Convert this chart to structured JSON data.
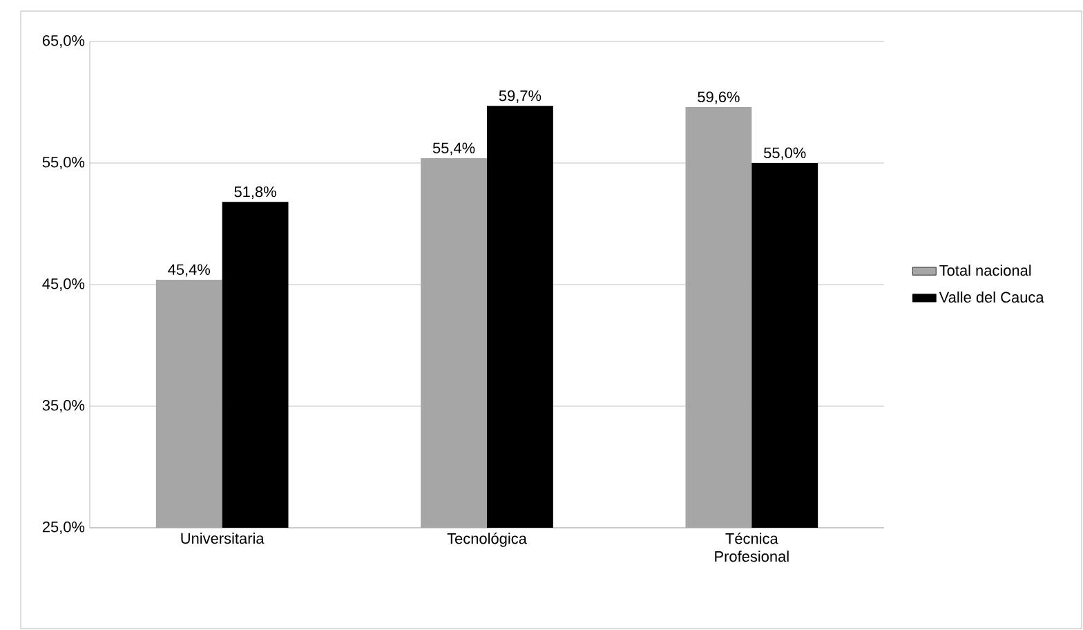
{
  "chart_data": {
    "type": "bar",
    "categories": [
      "Universitaria",
      "Tecnológica",
      "Técnica Profesional"
    ],
    "series": [
      {
        "name": "Total nacional",
        "color": "#a6a6a6",
        "values": [
          45.4,
          55.4,
          59.6
        ],
        "value_labels": [
          "45,4%",
          "55,4%",
          "59,6%"
        ]
      },
      {
        "name": "Valle del Cauca",
        "color": "#000000",
        "values": [
          51.8,
          59.7,
          55.0
        ],
        "value_labels": [
          "51,8%",
          "59,7%",
          "55,0%"
        ]
      }
    ],
    "ylim": [
      25,
      65
    ],
    "yticks": [
      {
        "value": 25,
        "label": "25,0%"
      },
      {
        "value": 35,
        "label": "35,0%"
      },
      {
        "value": 45,
        "label": "45,0%"
      },
      {
        "value": 55,
        "label": "55,0%"
      },
      {
        "value": 65,
        "label": "65,0%"
      }
    ],
    "grid": "y",
    "legend": "right"
  }
}
